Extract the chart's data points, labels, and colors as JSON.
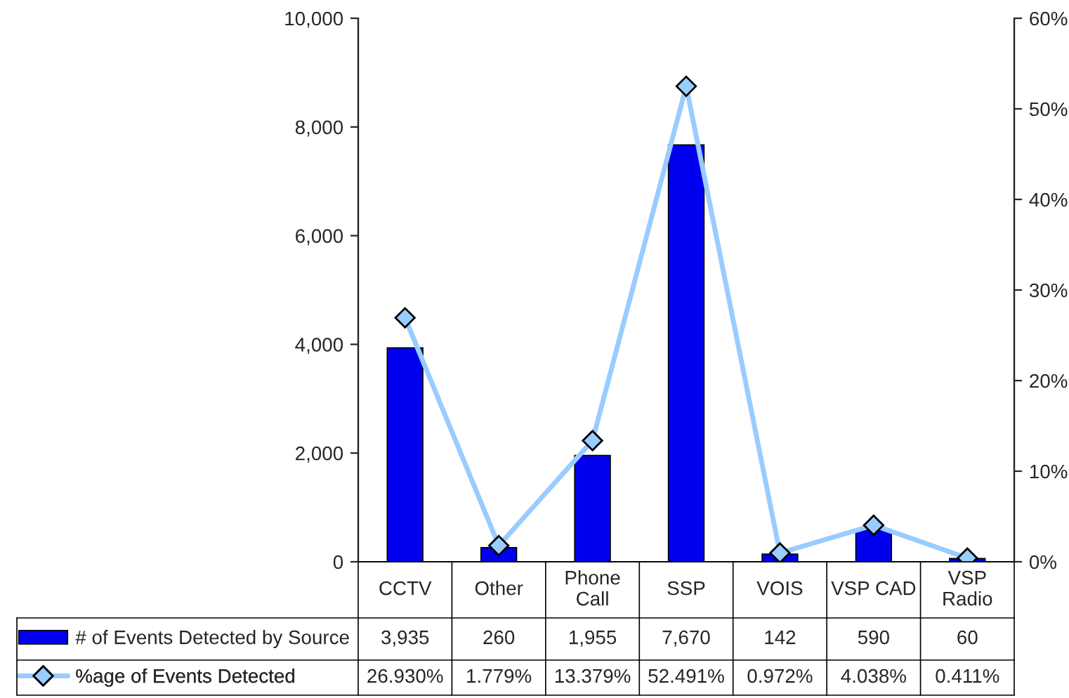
{
  "chart_data": {
    "type": "bar",
    "categories": [
      "CCTV",
      "Other",
      "Phone\nCall",
      "SSP",
      "VOIS",
      "VSP CAD",
      "VSP\nRadio"
    ],
    "series": [
      {
        "name": "# of Events Detected by Source",
        "color": "#0000ee",
        "values": [
          3935,
          260,
          1955,
          7670,
          142,
          590,
          60
        ],
        "value_labels": [
          "3,935",
          "260",
          "1,955",
          "7,670",
          "142",
          "590",
          "60"
        ]
      },
      {
        "name": "%age of Events Detected",
        "type": "line",
        "axis": "y2",
        "color": "#99ccff",
        "marker": "diamond",
        "values": [
          26.93,
          1.779,
          13.379,
          52.491,
          0.972,
          4.038,
          0.411
        ],
        "value_labels": [
          "26.930%",
          "1.779%",
          "13.379%",
          "52.491%",
          "0.972%",
          "4.038%",
          "0.411%"
        ]
      }
    ],
    "ylim": [
      0,
      10000
    ],
    "yticks": [
      0,
      {
        "value": 2000,
        "label": "2,000"
      },
      {
        "value": 4000,
        "label": "4,000"
      },
      {
        "value": 6000,
        "label": "6,000"
      },
      {
        "value": 8000,
        "label": "8,000"
      },
      {
        "value": 10000,
        "label": "10,000"
      }
    ],
    "y2lim": [
      0,
      60
    ],
    "y2ticks": [
      {
        "value": 0,
        "label": "0%"
      },
      {
        "value": 10,
        "label": "10%"
      },
      {
        "value": 20,
        "label": "20%"
      },
      {
        "value": 30,
        "label": "30%"
      },
      {
        "value": 40,
        "label": "40%"
      },
      {
        "value": 50,
        "label": "50%"
      },
      {
        "value": 60,
        "label": "60%"
      }
    ],
    "grid": false,
    "legend": "bottom left"
  }
}
